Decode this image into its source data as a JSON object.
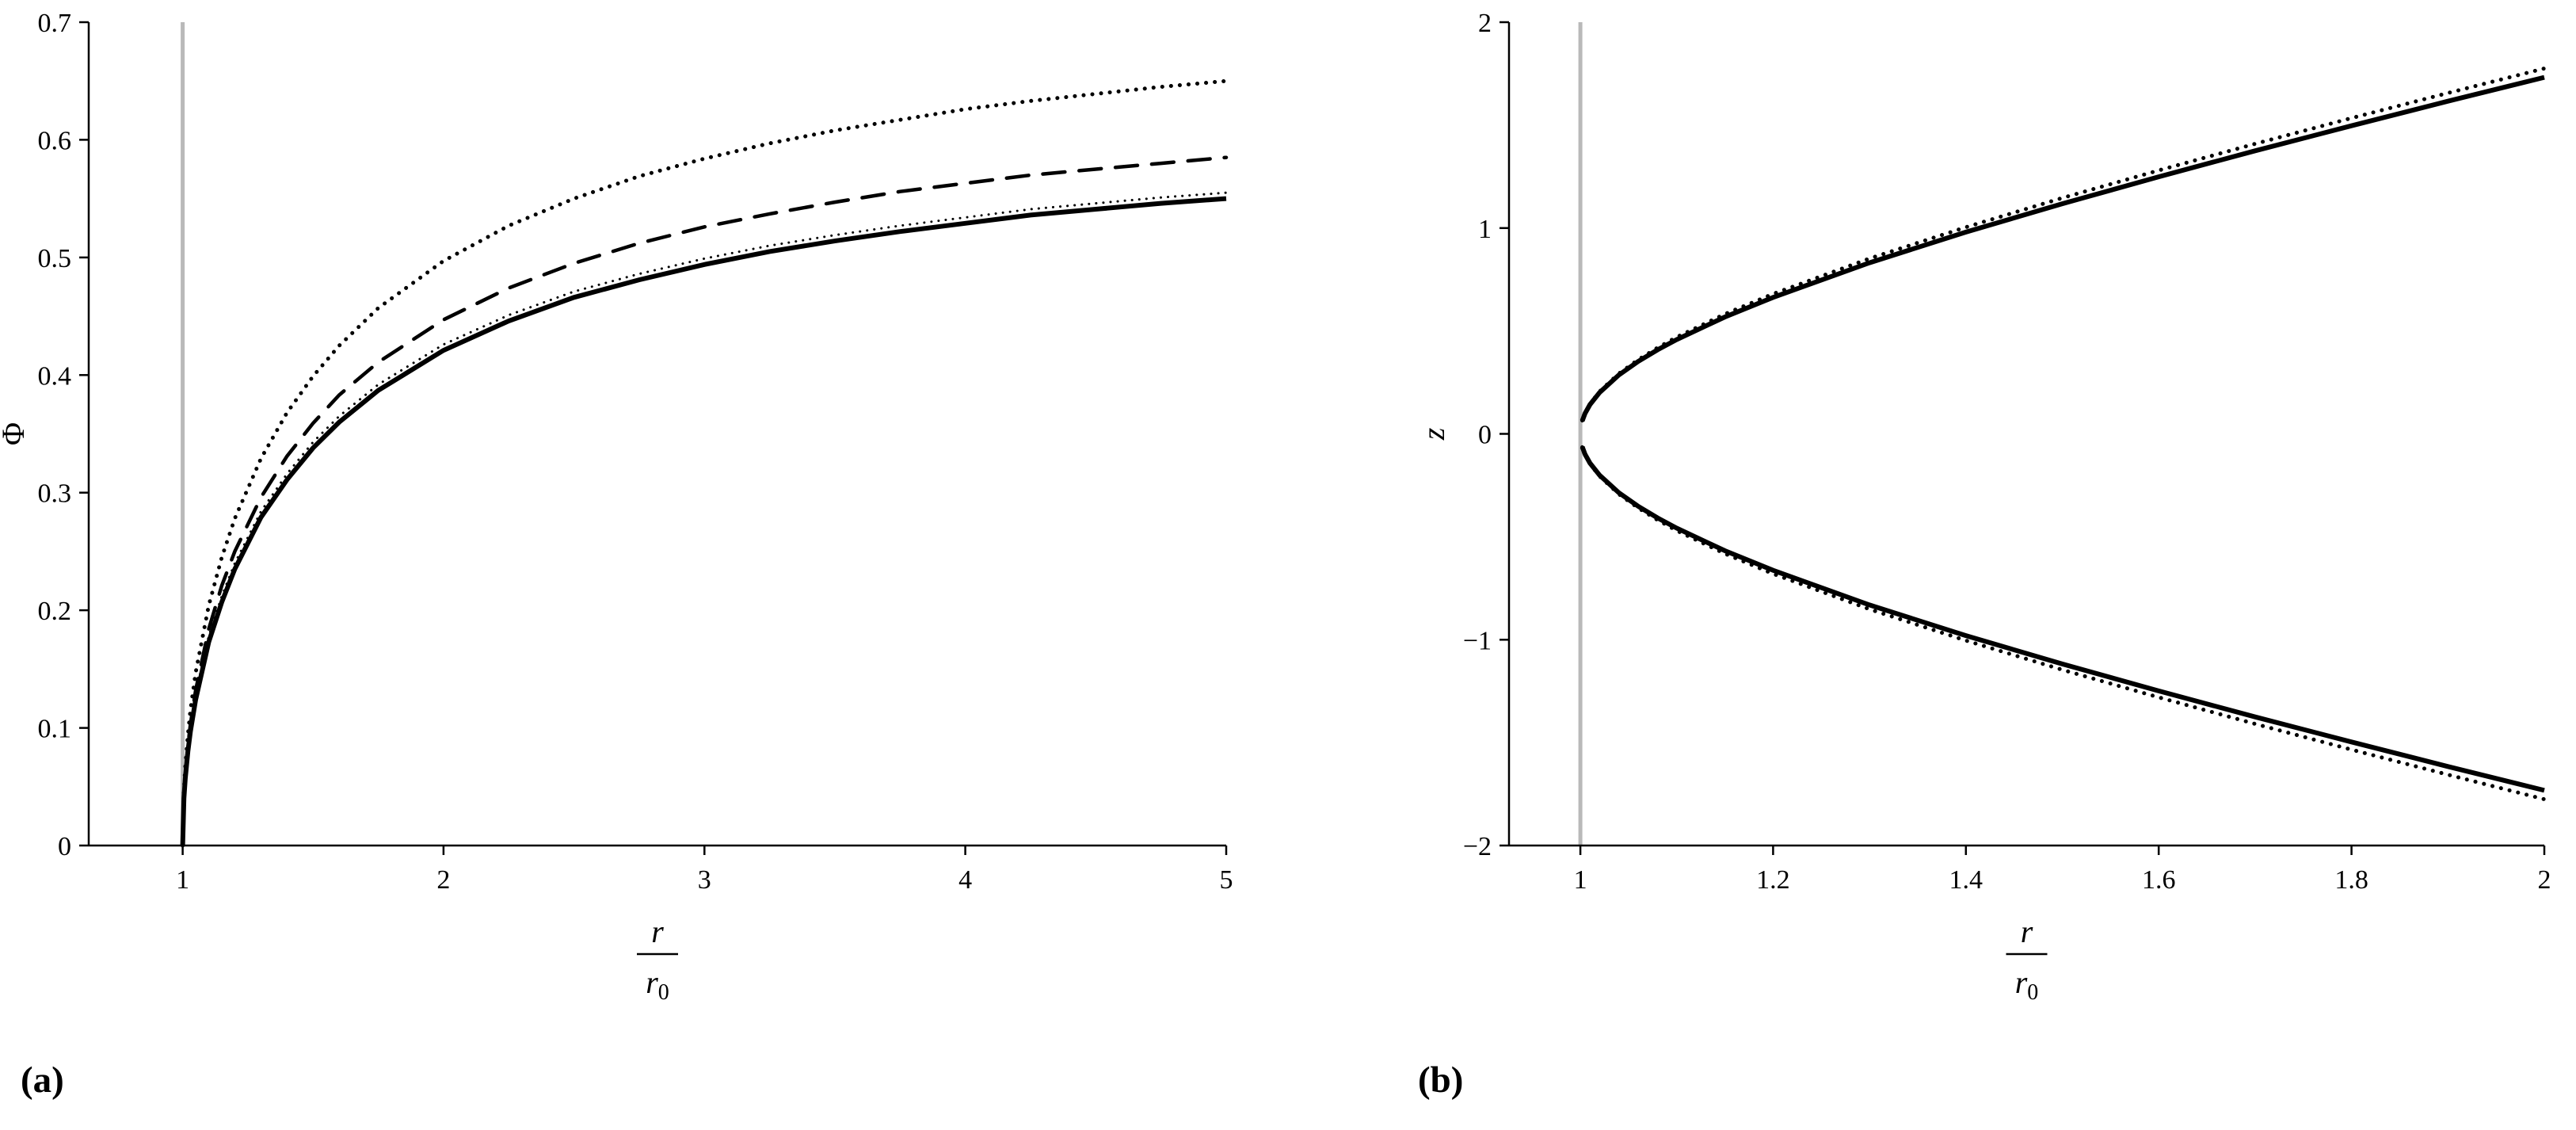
{
  "page": {
    "background": "#ffffff"
  },
  "panels": {
    "a_label": "(a)",
    "b_label": "(b)"
  },
  "chart_data": [
    {
      "id": "a",
      "type": "line",
      "xlabel": {
        "numerator": "r",
        "denominator_base": "r",
        "denominator_sub": "0"
      },
      "ylabel": "Φ",
      "ylabel_italic": false,
      "xlim": [
        0.64,
        5.0
      ],
      "ylim": [
        0,
        0.7
      ],
      "grid": false,
      "legend": "none",
      "xticks": {
        "values": [
          1,
          2,
          3,
          4,
          5
        ],
        "labels": [
          "1",
          "2",
          "3",
          "4",
          "5"
        ]
      },
      "yticks": {
        "values": [
          0,
          0.1,
          0.2,
          0.3,
          0.4,
          0.5,
          0.6,
          0.7
        ],
        "labels": [
          "0",
          "0.1",
          "0.2",
          "0.3",
          "0.4",
          "0.5",
          "0.6",
          "0.7"
        ]
      },
      "vline": {
        "x": 1,
        "color": "#b9b9b9"
      },
      "x": [
        1,
        1.005,
        1.01,
        1.02,
        1.03,
        1.05,
        1.1,
        1.15,
        1.2,
        1.3,
        1.4,
        1.5,
        1.6,
        1.75,
        2,
        2.25,
        2.5,
        2.75,
        3,
        3.25,
        3.5,
        3.75,
        4,
        4.25,
        4.5,
        4.75,
        5
      ],
      "series": [
        {
          "name": "dotted-curve",
          "style": "dotted",
          "color": "#000000",
          "values": [
            0,
            0.047,
            0.067,
            0.094,
            0.115,
            0.147,
            0.204,
            0.245,
            0.278,
            0.329,
            0.368,
            0.399,
            0.425,
            0.457,
            0.497,
            0.527,
            0.55,
            0.569,
            0.584,
            0.597,
            0.608,
            0.617,
            0.626,
            0.633,
            0.639,
            0.645,
            0.65
          ]
        },
        {
          "name": "dashed-curve",
          "style": "dashed",
          "color": "#000000",
          "values": [
            0,
            0.043,
            0.06,
            0.085,
            0.103,
            0.132,
            0.184,
            0.221,
            0.25,
            0.296,
            0.331,
            0.359,
            0.383,
            0.411,
            0.447,
            0.474,
            0.495,
            0.512,
            0.526,
            0.537,
            0.547,
            0.556,
            0.563,
            0.57,
            0.575,
            0.58,
            0.585
          ]
        },
        {
          "name": "solid-curve",
          "style": "solid",
          "color": "#000000",
          "values": [
            0,
            0.04,
            0.057,
            0.08,
            0.097,
            0.124,
            0.173,
            0.207,
            0.235,
            0.279,
            0.311,
            0.338,
            0.36,
            0.387,
            0.421,
            0.446,
            0.466,
            0.481,
            0.494,
            0.505,
            0.514,
            0.522,
            0.529,
            0.536,
            0.541,
            0.546,
            0.55
          ]
        },
        {
          "name": "thin-dotted-overlap-curve",
          "style": "thin-dotted",
          "color": "#000000",
          "values": [
            0,
            0.044,
            0.061,
            0.085,
            0.102,
            0.129,
            0.178,
            0.212,
            0.24,
            0.284,
            0.316,
            0.343,
            0.365,
            0.392,
            0.426,
            0.451,
            0.471,
            0.486,
            0.499,
            0.51,
            0.519,
            0.527,
            0.534,
            0.541,
            0.546,
            0.551,
            0.555
          ]
        }
      ]
    },
    {
      "id": "b",
      "type": "line",
      "xlabel": {
        "numerator": "r",
        "denominator_base": "r",
        "denominator_sub": "0"
      },
      "ylabel": "z",
      "ylabel_italic": true,
      "xlim": [
        0.926,
        2.0
      ],
      "ylim": [
        -2,
        2
      ],
      "grid": false,
      "legend": "none",
      "xticks": {
        "values": [
          1,
          1.2,
          1.4,
          1.6,
          1.8,
          2
        ],
        "labels": [
          "1",
          "1.2",
          "1.4",
          "1.6",
          "1.8",
          "2"
        ]
      },
      "yticks": {
        "values": [
          -2,
          -1,
          0,
          1,
          2
        ],
        "labels": [
          "−2",
          "−1",
          "0",
          "1",
          "2"
        ]
      },
      "vline": {
        "x": 1,
        "color": "#b9b9b9"
      },
      "x": [
        1.002,
        1.005,
        1.01,
        1.02,
        1.04,
        1.06,
        1.08,
        1.1,
        1.15,
        1.2,
        1.3,
        1.4,
        1.5,
        1.6,
        1.7,
        1.8,
        1.9,
        2
      ],
      "series": [
        {
          "name": "upper-dotted-curve",
          "style": "dotted",
          "color": "#000000",
          "values": [
            0.065,
            0.103,
            0.145,
            0.206,
            0.293,
            0.36,
            0.418,
            0.47,
            0.582,
            0.68,
            0.852,
            1.004,
            1.146,
            1.28,
            1.409,
            1.534,
            1.656,
            1.775
          ]
        },
        {
          "name": "lower-dotted-curve",
          "style": "dotted",
          "color": "#000000",
          "values": [
            -0.065,
            -0.103,
            -0.145,
            -0.206,
            -0.293,
            -0.36,
            -0.418,
            -0.47,
            -0.582,
            -0.68,
            -0.852,
            -1.004,
            -1.146,
            -1.28,
            -1.409,
            -1.534,
            -1.656,
            -1.775
          ]
        },
        {
          "name": "upper-solid-curve",
          "style": "solid",
          "color": "#000000",
          "values": [
            0.063,
            0.1,
            0.142,
            0.201,
            0.286,
            0.352,
            0.408,
            0.458,
            0.568,
            0.663,
            0.831,
            0.98,
            1.118,
            1.249,
            1.375,
            1.497,
            1.616,
            1.732
          ]
        },
        {
          "name": "lower-solid-curve",
          "style": "solid",
          "color": "#000000",
          "values": [
            -0.063,
            -0.1,
            -0.142,
            -0.201,
            -0.286,
            -0.352,
            -0.408,
            -0.458,
            -0.568,
            -0.663,
            -0.831,
            -0.98,
            -1.118,
            -1.249,
            -1.375,
            -1.497,
            -1.616,
            -1.732
          ]
        }
      ]
    }
  ]
}
